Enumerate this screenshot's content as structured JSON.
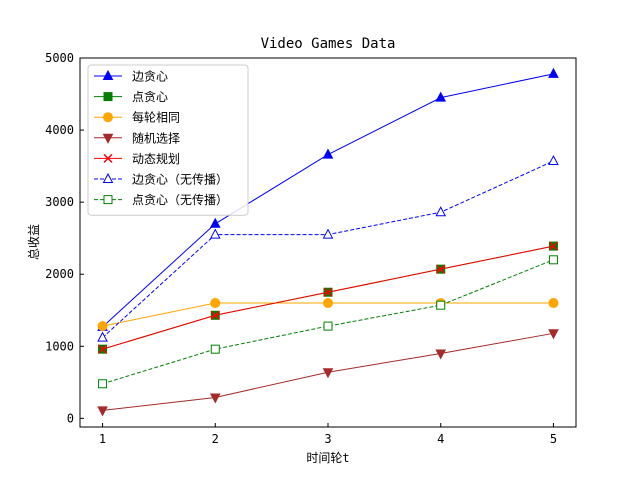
{
  "chart_data": {
    "type": "line",
    "title": "Video Games Data",
    "xlabel": "时间轮t",
    "ylabel": "总收益",
    "x": [
      1,
      2,
      3,
      4,
      5
    ],
    "xlim": [
      0.8,
      5.2
    ],
    "ylim": [
      -120,
      5000
    ],
    "yticks": [
      0,
      1000,
      2000,
      3000,
      4000,
      5000
    ],
    "grid": false,
    "legend_position": "top-left",
    "series": [
      {
        "name": "边贪心",
        "values": [
          1270,
          2700,
          3660,
          4450,
          4780
        ],
        "color": "#0000ff",
        "marker": "triangle",
        "filled": true,
        "dash": "solid"
      },
      {
        "name": "点贪心",
        "values": [
          960,
          1430,
          1750,
          2070,
          2390
        ],
        "color": "#008000",
        "marker": "square",
        "filled": true,
        "dash": "solid"
      },
      {
        "name": "每轮相同",
        "values": [
          1280,
          1600,
          1600,
          1600,
          1600
        ],
        "color": "#ffa500",
        "marker": "circle",
        "filled": true,
        "dash": "solid"
      },
      {
        "name": "随机选择",
        "values": [
          110,
          290,
          640,
          900,
          1180
        ],
        "color": "#a52a2a",
        "marker": "triangle-down",
        "filled": true,
        "dash": "solid"
      },
      {
        "name": "动态规划",
        "values": [
          960,
          1430,
          1750,
          2070,
          2390
        ],
        "color": "#ff0000",
        "marker": "x",
        "filled": false,
        "dash": "solid"
      },
      {
        "name": "边贪心（无传播）",
        "values": [
          1120,
          2550,
          2550,
          2860,
          3570
        ],
        "color": "#0000ff",
        "marker": "triangle",
        "filled": false,
        "dash": "dashed"
      },
      {
        "name": "点贪心（无传播）",
        "values": [
          480,
          960,
          1280,
          1570,
          2200
        ],
        "color": "#008000",
        "marker": "square",
        "filled": false,
        "dash": "dashed"
      }
    ]
  }
}
